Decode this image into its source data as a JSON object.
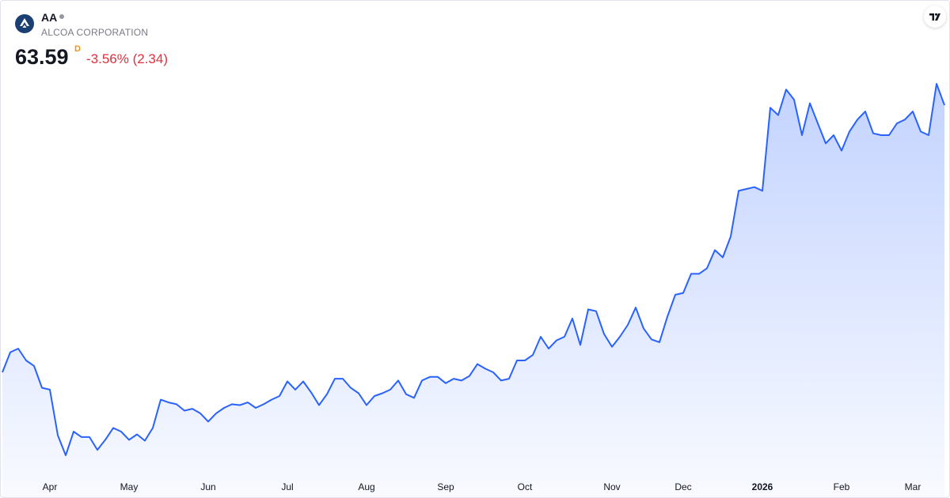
{
  "header": {
    "ticker": "AA",
    "company": "ALCOA CORPORATION",
    "price": "63.59",
    "interval": "D",
    "change": "-3.56% (2.34)"
  },
  "chart_data": {
    "type": "area",
    "color": "#2962ff",
    "categories": [
      null,
      null,
      null,
      null,
      null,
      null,
      "Apr",
      null,
      null,
      null,
      null,
      null,
      null,
      null,
      null,
      null,
      "May",
      null,
      null,
      null,
      null,
      null,
      null,
      null,
      null,
      null,
      "Jun",
      null,
      null,
      null,
      null,
      null,
      null,
      null,
      null,
      null,
      "Jul",
      null,
      null,
      null,
      null,
      null,
      null,
      null,
      null,
      null,
      "Aug",
      null,
      null,
      null,
      null,
      null,
      null,
      null,
      null,
      null,
      "Sep",
      null,
      null,
      null,
      null,
      null,
      null,
      null,
      null,
      null,
      "Oct",
      null,
      null,
      null,
      null,
      null,
      null,
      null,
      null,
      null,
      null,
      "Nov",
      null,
      null,
      null,
      null,
      null,
      null,
      null,
      null,
      "Dec",
      null,
      null,
      null,
      null,
      null,
      null,
      null,
      null,
      null,
      "2026",
      null,
      null,
      null,
      null,
      null,
      null,
      null,
      null,
      null,
      "Feb",
      null,
      null,
      null,
      null,
      null,
      null,
      null,
      null,
      "Mar",
      null,
      null,
      null,
      null
    ],
    "values": [
      34.3,
      36.5,
      36.9,
      35.6,
      35.0,
      32.6,
      32.4,
      27.4,
      25.2,
      27.8,
      27.2,
      27.2,
      25.8,
      26.9,
      28.2,
      27.8,
      26.9,
      27.5,
      26.8,
      28.2,
      31.3,
      31.0,
      30.8,
      30.1,
      30.3,
      29.8,
      28.9,
      29.8,
      30.4,
      30.8,
      30.7,
      31.0,
      30.4,
      30.8,
      31.3,
      31.7,
      33.3,
      32.4,
      33.3,
      32.1,
      30.7,
      31.9,
      33.6,
      33.6,
      32.6,
      32.0,
      30.7,
      31.7,
      32.0,
      32.4,
      33.4,
      31.9,
      31.5,
      33.4,
      33.8,
      33.8,
      33.1,
      33.6,
      33.4,
      33.9,
      35.2,
      34.7,
      34.3,
      33.4,
      33.6,
      35.6,
      35.6,
      36.2,
      38.2,
      36.9,
      37.8,
      38.2,
      40.2,
      37.3,
      41.2,
      41.0,
      38.5,
      37.1,
      38.2,
      39.5,
      41.4,
      39.1,
      37.9,
      37.6,
      40.4,
      42.8,
      43.0,
      45.1,
      45.1,
      45.7,
      47.7,
      46.9,
      49.2,
      54.2,
      54.4,
      54.6,
      54.2,
      63.3,
      62.5,
      65.3,
      64.2,
      60.3,
      63.8,
      61.6,
      59.4,
      60.3,
      58.6,
      60.7,
      62.0,
      62.9,
      60.5,
      60.3,
      60.3,
      61.6,
      62.0,
      62.9,
      60.7,
      60.3,
      65.93,
      63.59
    ]
  }
}
